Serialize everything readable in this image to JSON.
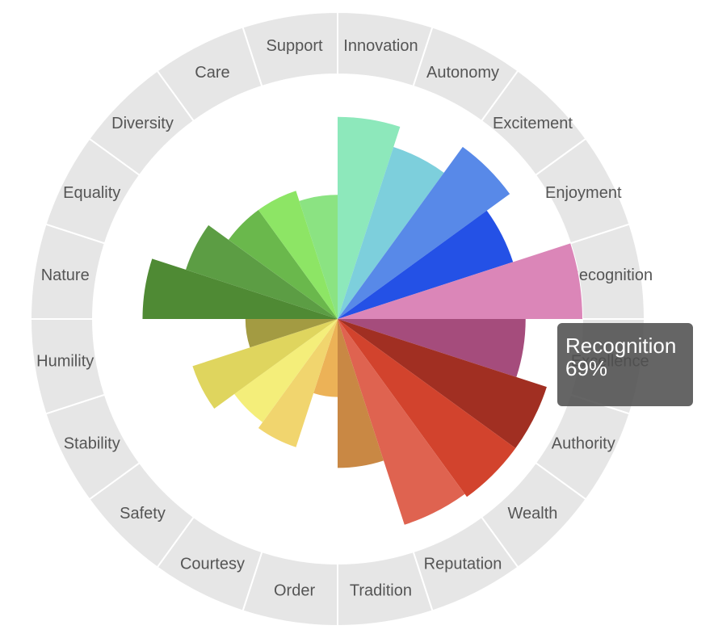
{
  "chart_data": {
    "type": "polarArea",
    "categories": [
      "Innovation",
      "Autonomy",
      "Excitement",
      "Enjoyment",
      "Recognition",
      "Excellence",
      "Authority",
      "Wealth",
      "Reputation",
      "Tradition",
      "Order",
      "Courtesy",
      "Safety",
      "Stability",
      "Humility",
      "Nature",
      "Equality",
      "Diversity",
      "Care",
      "Support"
    ],
    "values": [
      57,
      51,
      60,
      52,
      69,
      53,
      62,
      62,
      61,
      42,
      22,
      38,
      36,
      43,
      26,
      55,
      45,
      38,
      38,
      35
    ],
    "colors": [
      "#8de8bb",
      "#7dcfdc",
      "#5889e8",
      "#2451e6",
      "#db86b8",
      "#a54c7c",
      "#a12f22",
      "#d2432d",
      "#df6350",
      "#c98844",
      "#ecb257",
      "#f1d56e",
      "#f4ee7a",
      "#dfd55e",
      "#a39b42",
      "#4f8a34",
      "#5c9d44",
      "#6ab84c",
      "#8de565",
      "#8be382"
    ],
    "tooltip": {
      "label": "Recognition",
      "value": "69%"
    }
  }
}
